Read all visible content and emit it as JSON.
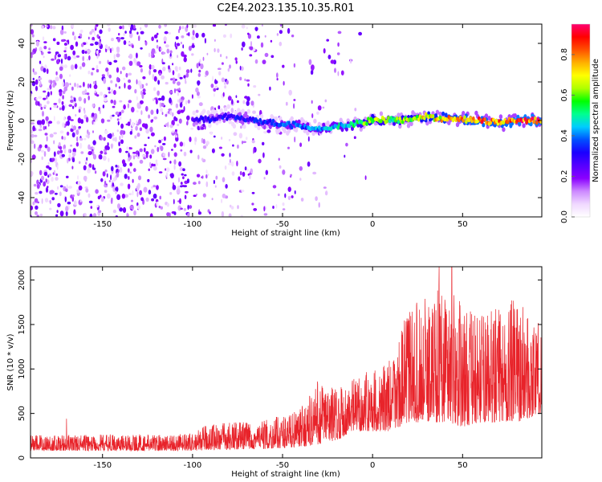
{
  "figure_title": "C2E4.2023.135.10.35.R01",
  "chart_data": [
    {
      "type": "heatmap",
      "xlabel": "Height of straight line (km)",
      "ylabel": "Frequency (Hz)",
      "xlim": [
        -190,
        94
      ],
      "ylim": [
        -50,
        50
      ],
      "xticks": [
        -150,
        -100,
        -50,
        0,
        50
      ],
      "yticks": [
        -40,
        -20,
        0,
        20,
        40
      ],
      "xtick_labels": [
        "-150",
        "-100",
        "-50",
        "0",
        "50"
      ],
      "ytick_labels": [
        "-40",
        "-20",
        "0",
        "20",
        "40"
      ],
      "colorbar": {
        "label": "Normalized spectral amplitude",
        "range": [
          0,
          0.95
        ],
        "ticks": [
          0.0,
          0.2,
          0.4,
          0.6,
          0.8
        ],
        "tick_labels": [
          "0.0",
          "0.2",
          "0.4",
          "0.6",
          "0.8"
        ],
        "colors": [
          "#ffffff",
          "#f0d8ff",
          "#cc88ff",
          "#8a00ff",
          "#5500ff",
          "#1a00ff",
          "#0050ff",
          "#00ccff",
          "#00ff90",
          "#00ff00",
          "#b0ff00",
          "#ffff00",
          "#ffb000",
          "#ff5000",
          "#ff0000",
          "#ff0070"
        ]
      },
      "ridge": [
        {
          "x": -100,
          "f": 0.0,
          "amp": 0.3
        },
        {
          "x": -90,
          "f": 0.8,
          "amp": 0.32
        },
        {
          "x": -80,
          "f": 2.0,
          "amp": 0.34
        },
        {
          "x": -70,
          "f": 1.0,
          "amp": 0.34
        },
        {
          "x": -60,
          "f": -1.0,
          "amp": 0.36
        },
        {
          "x": -50,
          "f": -2.0,
          "amp": 0.4
        },
        {
          "x": -40,
          "f": -2.5,
          "amp": 0.42
        },
        {
          "x": -30,
          "f": -4.5,
          "amp": 0.45
        },
        {
          "x": -20,
          "f": -3.0,
          "amp": 0.5
        },
        {
          "x": -10,
          "f": -2.0,
          "amp": 0.55
        },
        {
          "x": 0,
          "f": 0.5,
          "amp": 0.7
        },
        {
          "x": 10,
          "f": 0.0,
          "amp": 0.6
        },
        {
          "x": 20,
          "f": 0.5,
          "amp": 0.7
        },
        {
          "x": 30,
          "f": 2.0,
          "amp": 0.75
        },
        {
          "x": 40,
          "f": 1.0,
          "amp": 0.8
        },
        {
          "x": 50,
          "f": 0.5,
          "amp": 0.85
        },
        {
          "x": 60,
          "f": 0.0,
          "amp": 0.88
        },
        {
          "x": 70,
          "f": -1.0,
          "amp": 0.85
        },
        {
          "x": 80,
          "f": 0.0,
          "amp": 0.9
        },
        {
          "x": 94,
          "f": 0.0,
          "amp": 0.9
        }
      ],
      "noise_density": [
        {
          "x": -190,
          "d": 1.0
        },
        {
          "x": -110,
          "d": 1.0
        },
        {
          "x": -100,
          "d": 0.55
        },
        {
          "x": -60,
          "d": 0.3
        },
        {
          "x": -40,
          "d": 0.15
        },
        {
          "x": -20,
          "d": 0.05
        },
        {
          "x": 0,
          "d": 0.0
        },
        {
          "x": 94,
          "d": 0.0
        }
      ]
    },
    {
      "type": "line",
      "xlabel": "Height of straight line (km)",
      "ylabel": "SNR (10 * v/v)",
      "xlim": [
        -190,
        94
      ],
      "ylim": [
        0,
        2150
      ],
      "xticks": [
        -150,
        -100,
        -50,
        0,
        50
      ],
      "yticks": [
        0,
        500,
        1000,
        1500,
        2000
      ],
      "xtick_labels": [
        "-150",
        "-100",
        "-50",
        "0",
        "50"
      ],
      "ytick_labels": [
        "0",
        "500",
        "1000",
        "1500",
        "2000"
      ],
      "color": "#e8232a",
      "envelope": [
        {
          "x": -190,
          "low": 80,
          "high": 260
        },
        {
          "x": -100,
          "low": 80,
          "high": 270
        },
        {
          "x": -90,
          "low": 90,
          "high": 400
        },
        {
          "x": -60,
          "low": 100,
          "high": 420
        },
        {
          "x": -40,
          "low": 120,
          "high": 550
        },
        {
          "x": -30,
          "low": 150,
          "high": 900
        },
        {
          "x": -20,
          "low": 200,
          "high": 800
        },
        {
          "x": -10,
          "low": 300,
          "high": 900
        },
        {
          "x": 0,
          "low": 300,
          "high": 1000
        },
        {
          "x": 10,
          "low": 300,
          "high": 1100
        },
        {
          "x": 20,
          "low": 400,
          "high": 1700
        },
        {
          "x": 30,
          "low": 400,
          "high": 1800
        },
        {
          "x": 40,
          "low": 400,
          "high": 2100
        },
        {
          "x": 50,
          "low": 350,
          "high": 1700
        },
        {
          "x": 60,
          "low": 400,
          "high": 1600
        },
        {
          "x": 70,
          "low": 400,
          "high": 1700
        },
        {
          "x": 80,
          "low": 400,
          "high": 1800
        },
        {
          "x": 94,
          "low": 500,
          "high": 1500
        }
      ],
      "peaks": [
        {
          "x": -170,
          "y": 440
        },
        {
          "x": 37,
          "y": 2150
        },
        {
          "x": 44,
          "y": 2150
        }
      ]
    }
  ]
}
